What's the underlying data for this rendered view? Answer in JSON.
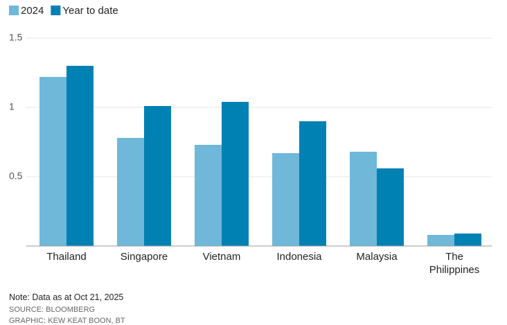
{
  "chart_data": {
    "type": "bar",
    "categories": [
      "Thailand",
      "Singapore",
      "Vietnam",
      "Indonesia",
      "Malaysia",
      "The Philippines"
    ],
    "series": [
      {
        "name": "2024",
        "color": "#6fb8d9",
        "values": [
          1.22,
          0.78,
          0.73,
          0.67,
          0.68,
          0.08
        ]
      },
      {
        "name": "Year to date",
        "color": "#0081b4",
        "values": [
          1.3,
          1.01,
          1.04,
          0.9,
          0.56,
          0.09
        ]
      }
    ],
    "ylim": [
      0,
      1.5
    ],
    "yticks": [
      0.5,
      1,
      1.5
    ],
    "grid": true,
    "note": "Note: Data as at Oct 21, 2025",
    "source": "SOURCE: BLOOMBERG",
    "credit": "GRAPHIC: KEW KEAT BOON, BT"
  }
}
